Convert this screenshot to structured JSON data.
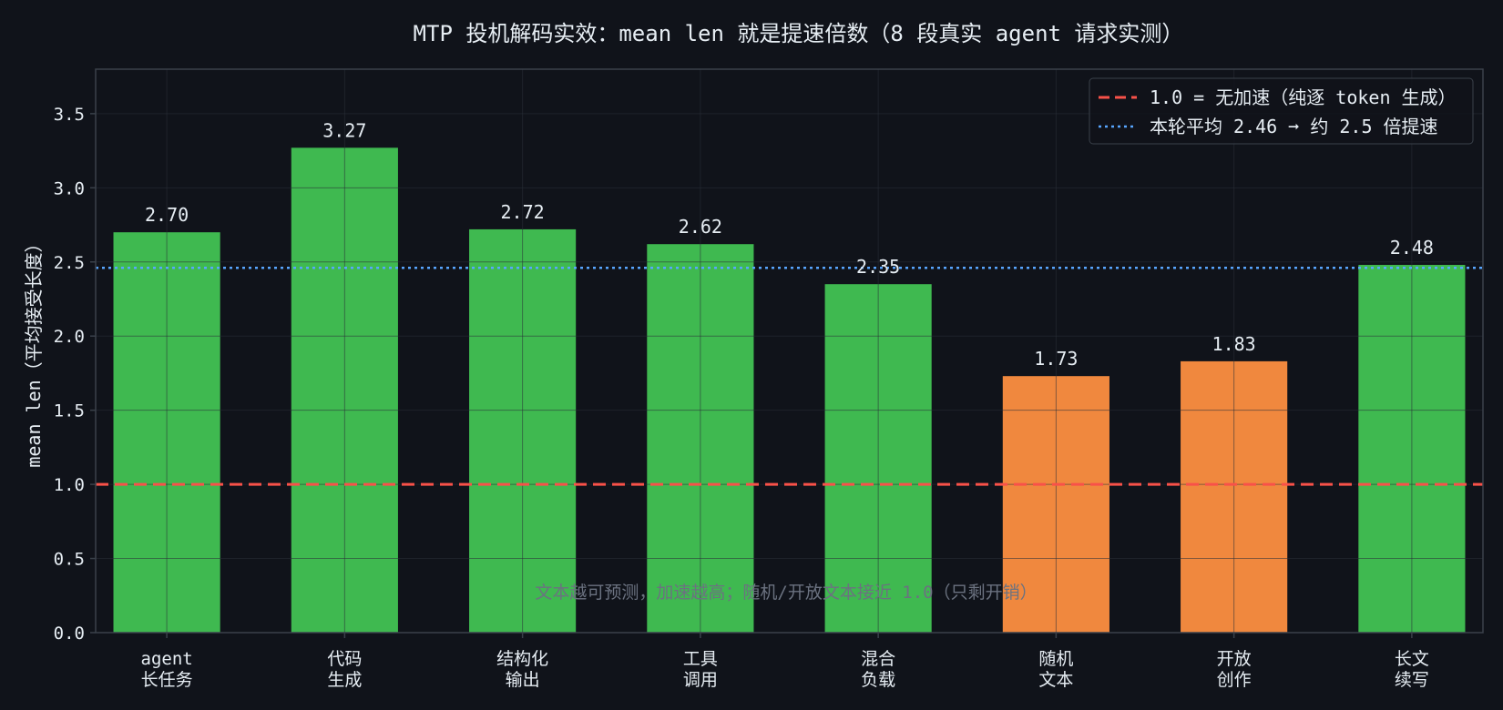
{
  "chart_data": {
    "type": "bar",
    "title": "MTP 投机解码实效：mean len 就是提速倍数（8 段真实 agent 请求实测）",
    "ylabel": "mean len（平均接受长度）",
    "xlabel": "",
    "ylim": [
      0,
      3.8
    ],
    "yticks": [
      "0.0",
      "0.5",
      "1.0",
      "1.5",
      "2.0",
      "2.5",
      "3.0",
      "3.5"
    ],
    "grid": true,
    "legend_position": "top-right",
    "categories": [
      [
        "agent",
        "长任务"
      ],
      [
        "代码",
        "生成"
      ],
      [
        "结构化",
        "输出"
      ],
      [
        "工具",
        "调用"
      ],
      [
        "混合",
        "负载"
      ],
      [
        "随机",
        "文本"
      ],
      [
        "开放",
        "创作"
      ],
      [
        "长文",
        "续写"
      ]
    ],
    "values": [
      2.7,
      3.27,
      2.72,
      2.62,
      2.35,
      1.73,
      1.83,
      2.48
    ],
    "value_labels": [
      "2.70",
      "3.27",
      "2.72",
      "2.62",
      "2.35",
      "1.73",
      "1.83",
      "2.48"
    ],
    "bar_colors": [
      "#3fb950",
      "#3fb950",
      "#3fb950",
      "#3fb950",
      "#3fb950",
      "#f0883e",
      "#f0883e",
      "#3fb950"
    ],
    "reference_lines": [
      {
        "value": 1.0,
        "style": "dashed",
        "color": "#f85149",
        "label": "1.0 = 无加速（纯逐 token 生成）"
      },
      {
        "value": 2.46,
        "style": "dotted",
        "color": "#58a6ff",
        "label": "本轮平均 2.46 ➞ 约 2.5 倍提速"
      }
    ],
    "annotation": "文本越可预测，加速越高；随机/开放文本接近 1.0（只剩开销）"
  },
  "colors": {
    "background": "#10131a",
    "axes_face": "#10131a",
    "text": "#e6edf3",
    "grid": "#2a3038",
    "spine": "#3a414a",
    "legend_bg": "#10131a",
    "legend_border": "#3a414a",
    "annotation": "#6b7280"
  }
}
